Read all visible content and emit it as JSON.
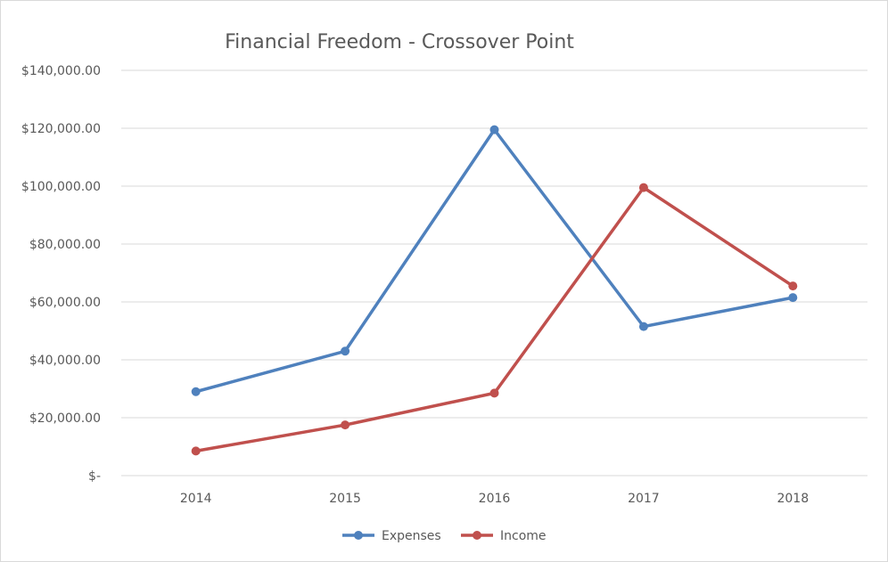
{
  "chart_data": {
    "type": "line",
    "title": "Financial Freedom - Crossover Point",
    "categories": [
      "2014",
      "2015",
      "2016",
      "2017",
      "2018"
    ],
    "series": [
      {
        "name": "Expenses",
        "color": "#4f81bd",
        "values": [
          29000,
          43000,
          119500,
          51500,
          61500
        ]
      },
      {
        "name": "Income",
        "color": "#c0504d",
        "values": [
          8500,
          17500,
          28500,
          99500,
          65500
        ]
      }
    ],
    "ylim": [
      0,
      140000
    ],
    "yticks": [
      0,
      20000,
      40000,
      60000,
      80000,
      100000,
      120000,
      140000
    ],
    "ytick_labels": [
      "$-",
      "$20,000.00",
      "$40,000.00",
      "$60,000.00",
      "$80,000.00",
      "$100,000.00",
      "$120,000.00",
      "$140,000.00"
    ],
    "grid": true,
    "legend_position": "bottom"
  }
}
